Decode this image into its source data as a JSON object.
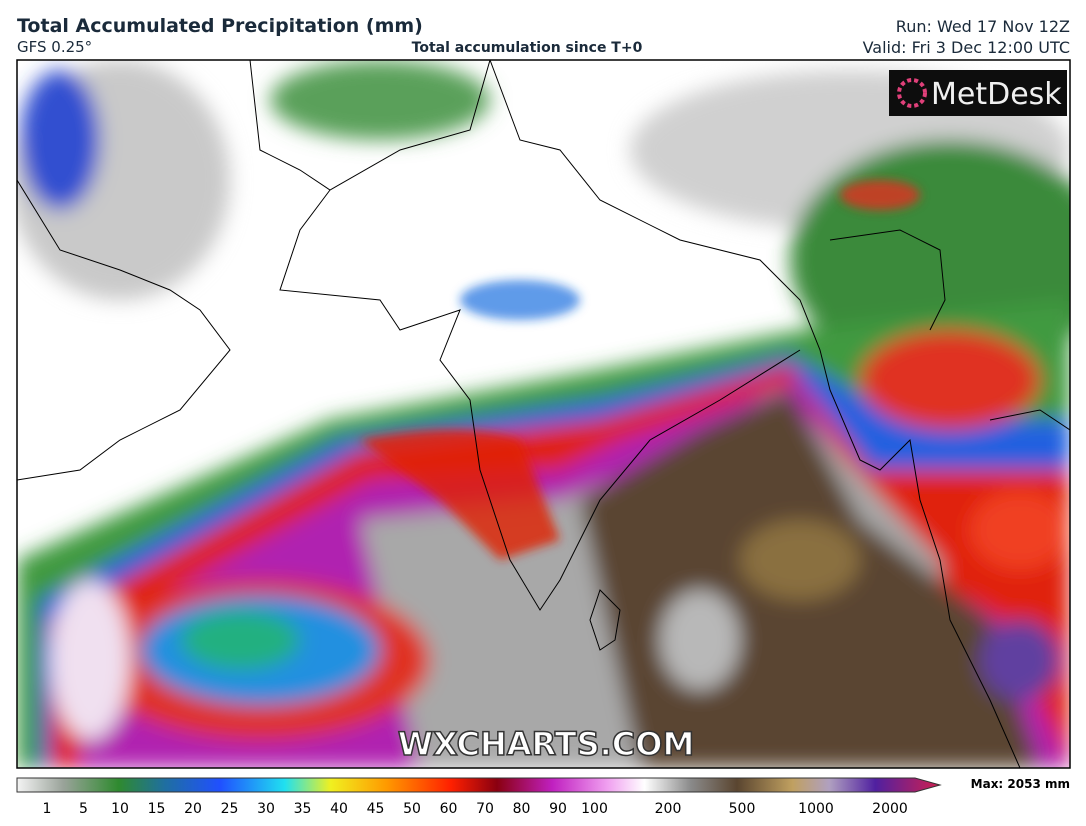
{
  "header": {
    "title": "Total Accumulated Precipitation (mm)",
    "model": "GFS 0.25°",
    "description": "Total accumulation since T+0",
    "run": "Run: Wed 17 Nov 12Z",
    "valid": "Valid: Fri 3 Dec 12:00 UTC"
  },
  "logo": "MetDesk",
  "watermark": "WXCHARTS.COM",
  "legend": {
    "ticks": [
      1,
      5,
      10,
      15,
      20,
      25,
      30,
      35,
      40,
      45,
      50,
      60,
      70,
      80,
      90,
      100,
      200,
      500,
      1000,
      2000
    ],
    "max": "Max: 2053 mm"
  }
}
